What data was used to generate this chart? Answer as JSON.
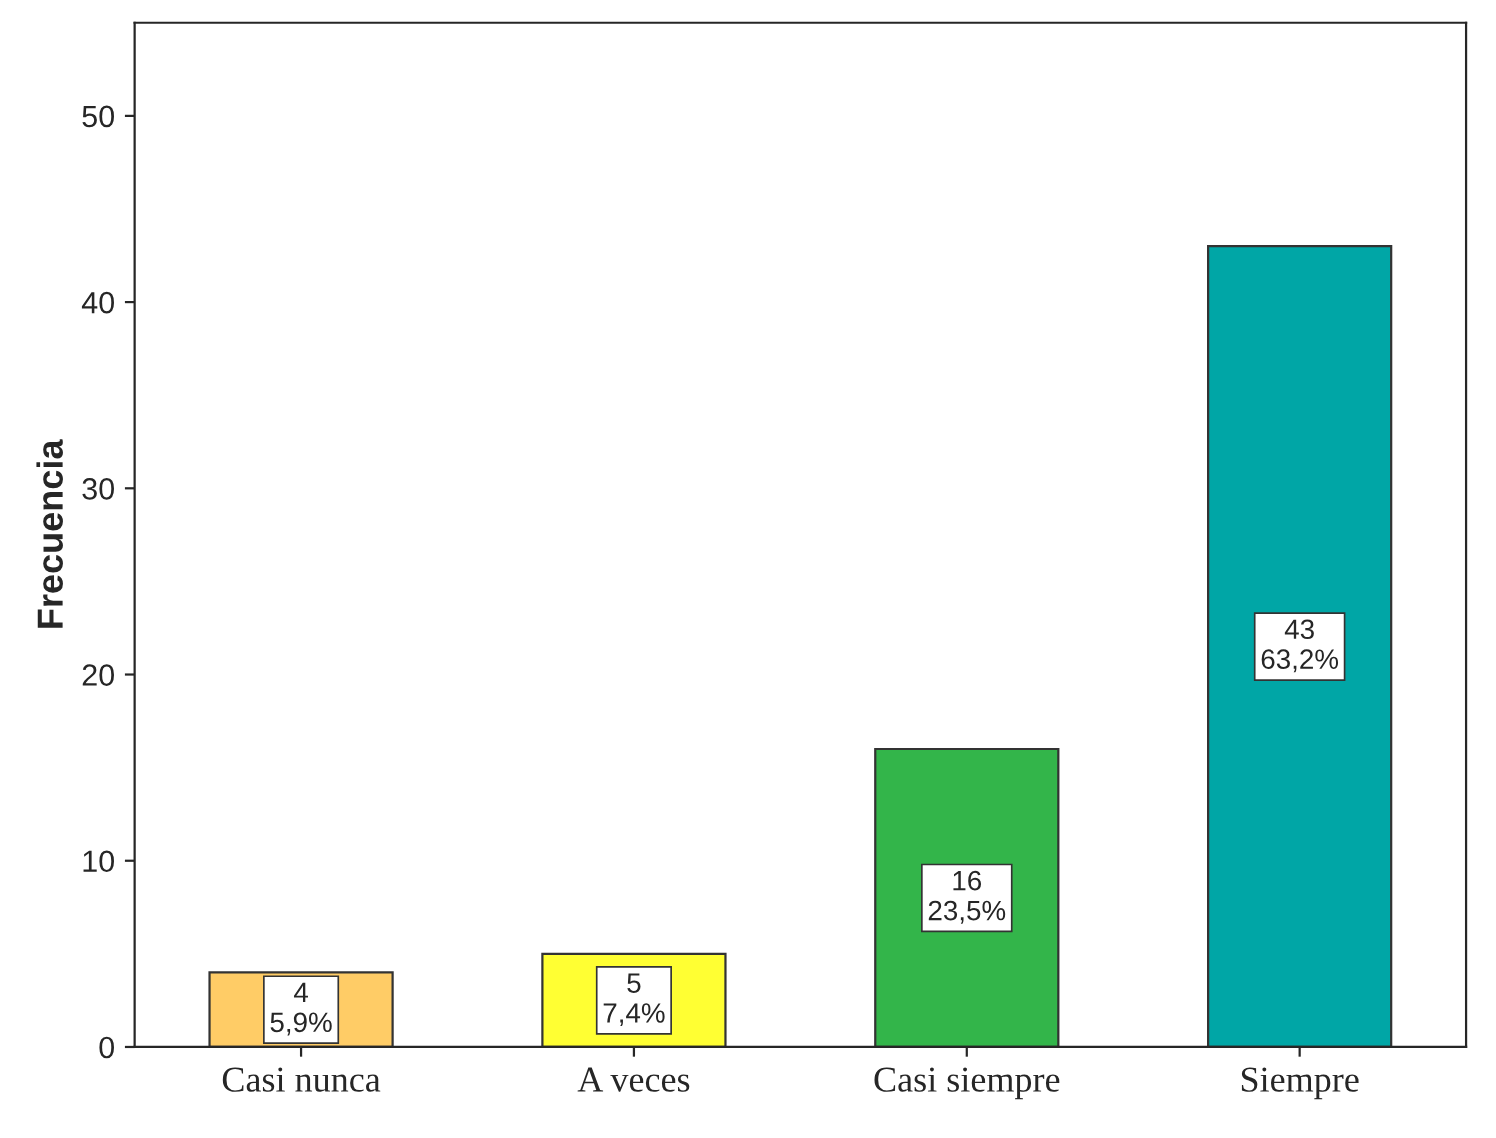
{
  "chart_data": {
    "type": "bar",
    "ylabel": "Frecuencia",
    "categories": [
      "Casi nunca",
      "A veces",
      "Casi siempre",
      "Siempre"
    ],
    "values": [
      4,
      5,
      16,
      43
    ],
    "colors": [
      "#ffcc66",
      "#ffff33",
      "#33b54a",
      "#00a6a6"
    ],
    "value_labels": [
      "4\n5,9%",
      "5\n7,4%",
      "16\n23,5%",
      "43\n63,2%"
    ],
    "ylim": [
      0,
      55
    ],
    "yticks": [
      0,
      10,
      20,
      30,
      40,
      50
    ],
    "grid": false
  }
}
